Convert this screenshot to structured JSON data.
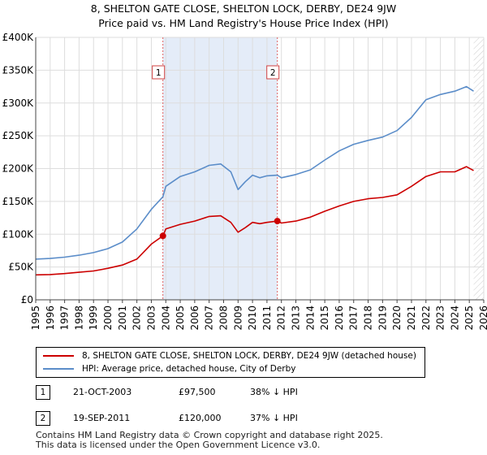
{
  "title_line1": "8, SHELTON GATE CLOSE, SHELTON LOCK, DERBY, DE24 9JW",
  "title_line2": "Price paid vs. HM Land Registry's House Price Index (HPI)",
  "legend": {
    "property": "8, SHELTON GATE CLOSE, SHELTON LOCK, DERBY, DE24 9JW (detached house)",
    "hpi": "HPI: Average price, detached house, City of Derby"
  },
  "sales": [
    {
      "num": "1",
      "date": "21-OCT-2003",
      "price": "£97,500",
      "hpi_diff": "38% ↓ HPI"
    },
    {
      "num": "2",
      "date": "19-SEP-2011",
      "price": "£120,000",
      "hpi_diff": "37% ↓ HPI"
    }
  ],
  "footer_line1": "Contains HM Land Registry data © Crown copyright and database right 2025.",
  "footer_line2": "This data is licensed under the Open Government Licence v3.0.",
  "colors": {
    "property": "#cc0000",
    "hpi": "#5b8dc9",
    "shade": "#e4ecf8",
    "grid": "#dddddd"
  },
  "chart_data": {
    "type": "line",
    "xlim": [
      1995,
      2026
    ],
    "ylim": [
      0,
      400000
    ],
    "x_ticks": [
      "1995",
      "1996",
      "1997",
      "1998",
      "1999",
      "2000",
      "2001",
      "2002",
      "2003",
      "2004",
      "2005",
      "2006",
      "2007",
      "2008",
      "2009",
      "2010",
      "2011",
      "2012",
      "2013",
      "2014",
      "2015",
      "2016",
      "2017",
      "2018",
      "2019",
      "2020",
      "2021",
      "2022",
      "2023",
      "2024",
      "2025",
      "2026"
    ],
    "y_ticks": [
      {
        "value": 0,
        "label": "£0"
      },
      {
        "value": 50000,
        "label": "£50K"
      },
      {
        "value": 100000,
        "label": "£100K"
      },
      {
        "value": 150000,
        "label": "£150K"
      },
      {
        "value": 200000,
        "label": "£200K"
      },
      {
        "value": 250000,
        "label": "£250K"
      },
      {
        "value": 300000,
        "label": "£300K"
      },
      {
        "value": 350000,
        "label": "£350K"
      },
      {
        "value": 400000,
        "label": "£400K"
      }
    ],
    "shaded_range": [
      2003.8,
      2011.72
    ],
    "future_hatch_from": 2025.3,
    "markers": [
      {
        "label": "1",
        "x": 2003.8,
        "y": 97500
      },
      {
        "label": "2",
        "x": 2011.72,
        "y": 120000
      }
    ],
    "series": [
      {
        "name": "8, SHELTON GATE CLOSE, SHELTON LOCK, DERBY, DE24 9JW (detached house)",
        "color_key": "property",
        "points": [
          [
            1995,
            38000
          ],
          [
            1996,
            38500
          ],
          [
            1997,
            40000
          ],
          [
            1998,
            42000
          ],
          [
            1999,
            44000
          ],
          [
            2000,
            48000
          ],
          [
            2001,
            53000
          ],
          [
            2002,
            62000
          ],
          [
            2003,
            85000
          ],
          [
            2003.8,
            97500
          ],
          [
            2004,
            108000
          ],
          [
            2005,
            115000
          ],
          [
            2006,
            120000
          ],
          [
            2007,
            127000
          ],
          [
            2007.8,
            128000
          ],
          [
            2008.5,
            118000
          ],
          [
            2009,
            103000
          ],
          [
            2009.5,
            110000
          ],
          [
            2010,
            118000
          ],
          [
            2010.5,
            116000
          ],
          [
            2011,
            118000
          ],
          [
            2011.72,
            120000
          ],
          [
            2012,
            117000
          ],
          [
            2013,
            120000
          ],
          [
            2014,
            126000
          ],
          [
            2015,
            135000
          ],
          [
            2016,
            143000
          ],
          [
            2017,
            150000
          ],
          [
            2018,
            154000
          ],
          [
            2019,
            156000
          ],
          [
            2020,
            160000
          ],
          [
            2021,
            173000
          ],
          [
            2022,
            188000
          ],
          [
            2023,
            195000
          ],
          [
            2024,
            195000
          ],
          [
            2024.8,
            203000
          ],
          [
            2025.3,
            197000
          ]
        ]
      },
      {
        "name": "HPI: Average price, detached house, City of Derby",
        "color_key": "hpi",
        "points": [
          [
            1995,
            62000
          ],
          [
            1996,
            63000
          ],
          [
            1997,
            65000
          ],
          [
            1998,
            68000
          ],
          [
            1999,
            72000
          ],
          [
            2000,
            78000
          ],
          [
            2001,
            88000
          ],
          [
            2002,
            108000
          ],
          [
            2003,
            138000
          ],
          [
            2003.8,
            157000
          ],
          [
            2004,
            173000
          ],
          [
            2005,
            188000
          ],
          [
            2006,
            195000
          ],
          [
            2007,
            205000
          ],
          [
            2007.8,
            207000
          ],
          [
            2008.5,
            195000
          ],
          [
            2009,
            168000
          ],
          [
            2009.5,
            180000
          ],
          [
            2010,
            190000
          ],
          [
            2010.5,
            186000
          ],
          [
            2011,
            189000
          ],
          [
            2011.72,
            190000
          ],
          [
            2012,
            186000
          ],
          [
            2013,
            191000
          ],
          [
            2014,
            198000
          ],
          [
            2015,
            213000
          ],
          [
            2016,
            227000
          ],
          [
            2017,
            237000
          ],
          [
            2018,
            243000
          ],
          [
            2019,
            248000
          ],
          [
            2020,
            258000
          ],
          [
            2021,
            278000
          ],
          [
            2022,
            305000
          ],
          [
            2023,
            313000
          ],
          [
            2024,
            318000
          ],
          [
            2024.8,
            325000
          ],
          [
            2025.3,
            318000
          ]
        ]
      }
    ]
  }
}
